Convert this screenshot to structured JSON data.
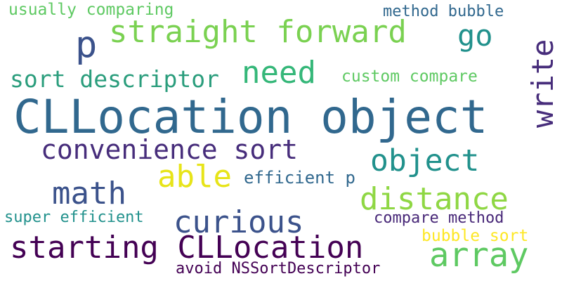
{
  "word_cloud": {
    "words": [
      {
        "id": "usually-comparing",
        "text": "usually comparing",
        "color": "#5ec962"
      },
      {
        "id": "method-bubble",
        "text": "method bubble",
        "color": "#31688e"
      },
      {
        "id": "straight-forward",
        "text": "straight forward",
        "color": "#7ad151"
      },
      {
        "id": "p-top",
        "text": "p",
        "color": "#3b528b"
      },
      {
        "id": "go",
        "text": "go",
        "color": "#21918c"
      },
      {
        "id": "write",
        "text": "write",
        "color": "#472d7b"
      },
      {
        "id": "need",
        "text": "need",
        "color": "#35b779"
      },
      {
        "id": "sort-descriptor",
        "text": "sort descriptor",
        "color": "#2a9d7c"
      },
      {
        "id": "custom-compare",
        "text": "custom compare",
        "color": "#5ec962"
      },
      {
        "id": "cllocation-object",
        "text": "CLLocation object",
        "color": "#31688e"
      },
      {
        "id": "convenience-sort",
        "text": "convenience sort",
        "color": "#472d7b"
      },
      {
        "id": "object",
        "text": "object",
        "color": "#21918c"
      },
      {
        "id": "able",
        "text": "able",
        "color": "#e7e419"
      },
      {
        "id": "efficient-p",
        "text": "efficient p",
        "color": "#31688e"
      },
      {
        "id": "math",
        "text": "math",
        "color": "#3b528b"
      },
      {
        "id": "distance",
        "text": "distance",
        "color": "#8fd744"
      },
      {
        "id": "curious",
        "text": "curious",
        "color": "#3b528b"
      },
      {
        "id": "super-efficient",
        "text": "super efficient",
        "color": "#21918c"
      },
      {
        "id": "compare-method",
        "text": "compare method",
        "color": "#482878"
      },
      {
        "id": "bubble-sort",
        "text": "bubble sort",
        "color": "#fde725"
      },
      {
        "id": "starting-cllocation",
        "text": "starting CLLocation",
        "color": "#440154"
      },
      {
        "id": "array",
        "text": "array",
        "color": "#5ec962"
      },
      {
        "id": "avoid-nssortdescriptor",
        "text": "avoid NSSortDescriptor",
        "color": "#440154"
      }
    ]
  }
}
